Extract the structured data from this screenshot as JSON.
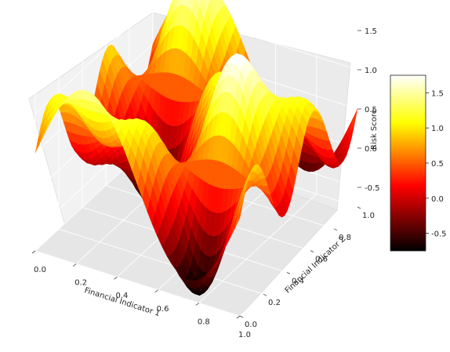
{
  "chart_data": {
    "type": "surface3d",
    "xlabel": "Financial Indicator 1",
    "ylabel": "Financial Indicator 2",
    "zlabel": "Risk Score",
    "xlim": [
      0,
      1
    ],
    "ylim": [
      0,
      1
    ],
    "zlim": [
      -0.75,
      1.75
    ],
    "x_ticks": [
      "0.0",
      "0.2",
      "0.4",
      "0.6",
      "0.8",
      "1.0"
    ],
    "y_ticks": [
      "0.0",
      "0.2",
      "0.4",
      "0.6",
      "0.8",
      "1.0"
    ],
    "z_ticks": [
      "-0.5",
      "0.0",
      "0.5",
      "1.0",
      "1.5"
    ],
    "colorbar": {
      "ticks": [
        "-0.5",
        "0.0",
        "0.5",
        "1.0",
        "1.5"
      ],
      "range": [
        -0.75,
        1.75
      ],
      "colormap": "hot"
    },
    "surface_formula": "sin(2*pi*x)*cos(2*pi*y) + 0.5*cos(4*pi*x)*sin(4*pi*y) + 0.5",
    "grid": true,
    "colormap_stops": [
      "#000000",
      "#ff0000",
      "#ffff00",
      "#ffffff"
    ]
  }
}
